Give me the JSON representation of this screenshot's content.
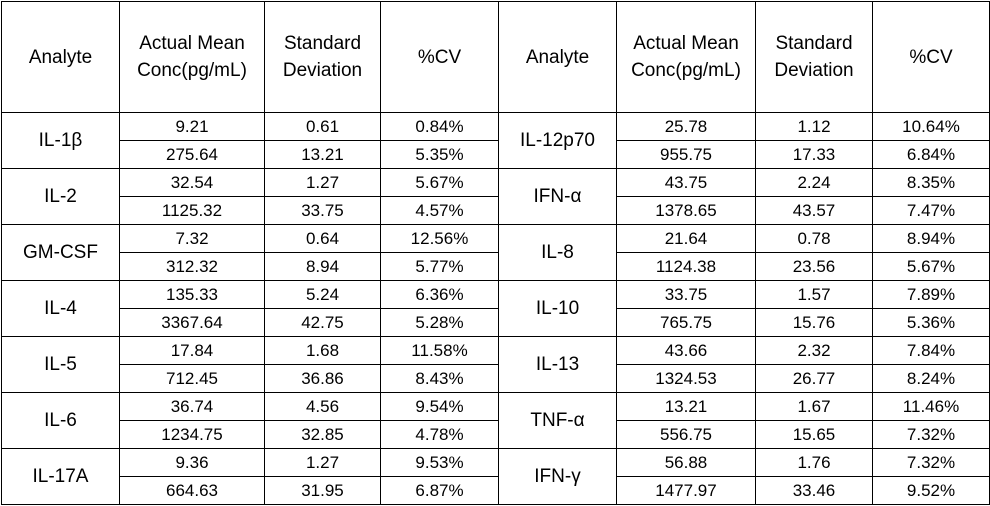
{
  "headers": [
    "Analyte",
    "Actual Mean Conc(pg/mL)",
    "Standard Deviation",
    "%CV",
    "Analyte",
    "Actual Mean Conc(pg/mL)",
    "Standard Deviation",
    "%CV"
  ],
  "rows": [
    {
      "left": {
        "analyte": "IL-1β",
        "values": [
          [
            "9.21",
            "0.61",
            "0.84%"
          ],
          [
            "275.64",
            "13.21",
            "5.35%"
          ]
        ]
      },
      "right": {
        "analyte": "IL-12p70",
        "values": [
          [
            "25.78",
            "1.12",
            "10.64%"
          ],
          [
            "955.75",
            "17.33",
            "6.84%"
          ]
        ]
      }
    },
    {
      "left": {
        "analyte": "IL-2",
        "values": [
          [
            "32.54",
            "1.27",
            "5.67%"
          ],
          [
            "1125.32",
            "33.75",
            "4.57%"
          ]
        ]
      },
      "right": {
        "analyte": "IFN-α",
        "values": [
          [
            "43.75",
            "2.24",
            "8.35%"
          ],
          [
            "1378.65",
            "43.57",
            "7.47%"
          ]
        ]
      }
    },
    {
      "left": {
        "analyte": "GM-CSF",
        "values": [
          [
            "7.32",
            "0.64",
            "12.56%"
          ],
          [
            "312.32",
            "8.94",
            "5.77%"
          ]
        ]
      },
      "right": {
        "analyte": "IL-8",
        "values": [
          [
            "21.64",
            "0.78",
            "8.94%"
          ],
          [
            "1124.38",
            "23.56",
            "5.67%"
          ]
        ]
      }
    },
    {
      "left": {
        "analyte": "IL-4",
        "values": [
          [
            "135.33",
            "5.24",
            "6.36%"
          ],
          [
            "3367.64",
            "42.75",
            "5.28%"
          ]
        ]
      },
      "right": {
        "analyte": "IL-10",
        "values": [
          [
            "33.75",
            "1.57",
            "7.89%"
          ],
          [
            "765.75",
            "15.76",
            "5.36%"
          ]
        ]
      }
    },
    {
      "left": {
        "analyte": "IL-5",
        "values": [
          [
            "17.84",
            "1.68",
            "11.58%"
          ],
          [
            "712.45",
            "36.86",
            "8.43%"
          ]
        ]
      },
      "right": {
        "analyte": "IL-13",
        "values": [
          [
            "43.66",
            "2.32",
            "7.84%"
          ],
          [
            "1324.53",
            "26.77",
            "8.24%"
          ]
        ]
      }
    },
    {
      "left": {
        "analyte": "IL-6",
        "values": [
          [
            "36.74",
            "4.56",
            "9.54%"
          ],
          [
            "1234.75",
            "32.85",
            "4.78%"
          ]
        ]
      },
      "right": {
        "analyte": "TNF-α",
        "values": [
          [
            "13.21",
            "1.67",
            "11.46%"
          ],
          [
            "556.75",
            "15.65",
            "7.32%"
          ]
        ]
      }
    },
    {
      "left": {
        "analyte": "IL-17A",
        "values": [
          [
            "9.36",
            "1.27",
            "9.53%"
          ],
          [
            "664.63",
            "31.95",
            "6.87%"
          ]
        ]
      },
      "right": {
        "analyte": "IFN-γ",
        "values": [
          [
            "56.88",
            "1.76",
            "7.32%"
          ],
          [
            "1477.97",
            "33.46",
            "9.52%"
          ]
        ]
      }
    }
  ]
}
